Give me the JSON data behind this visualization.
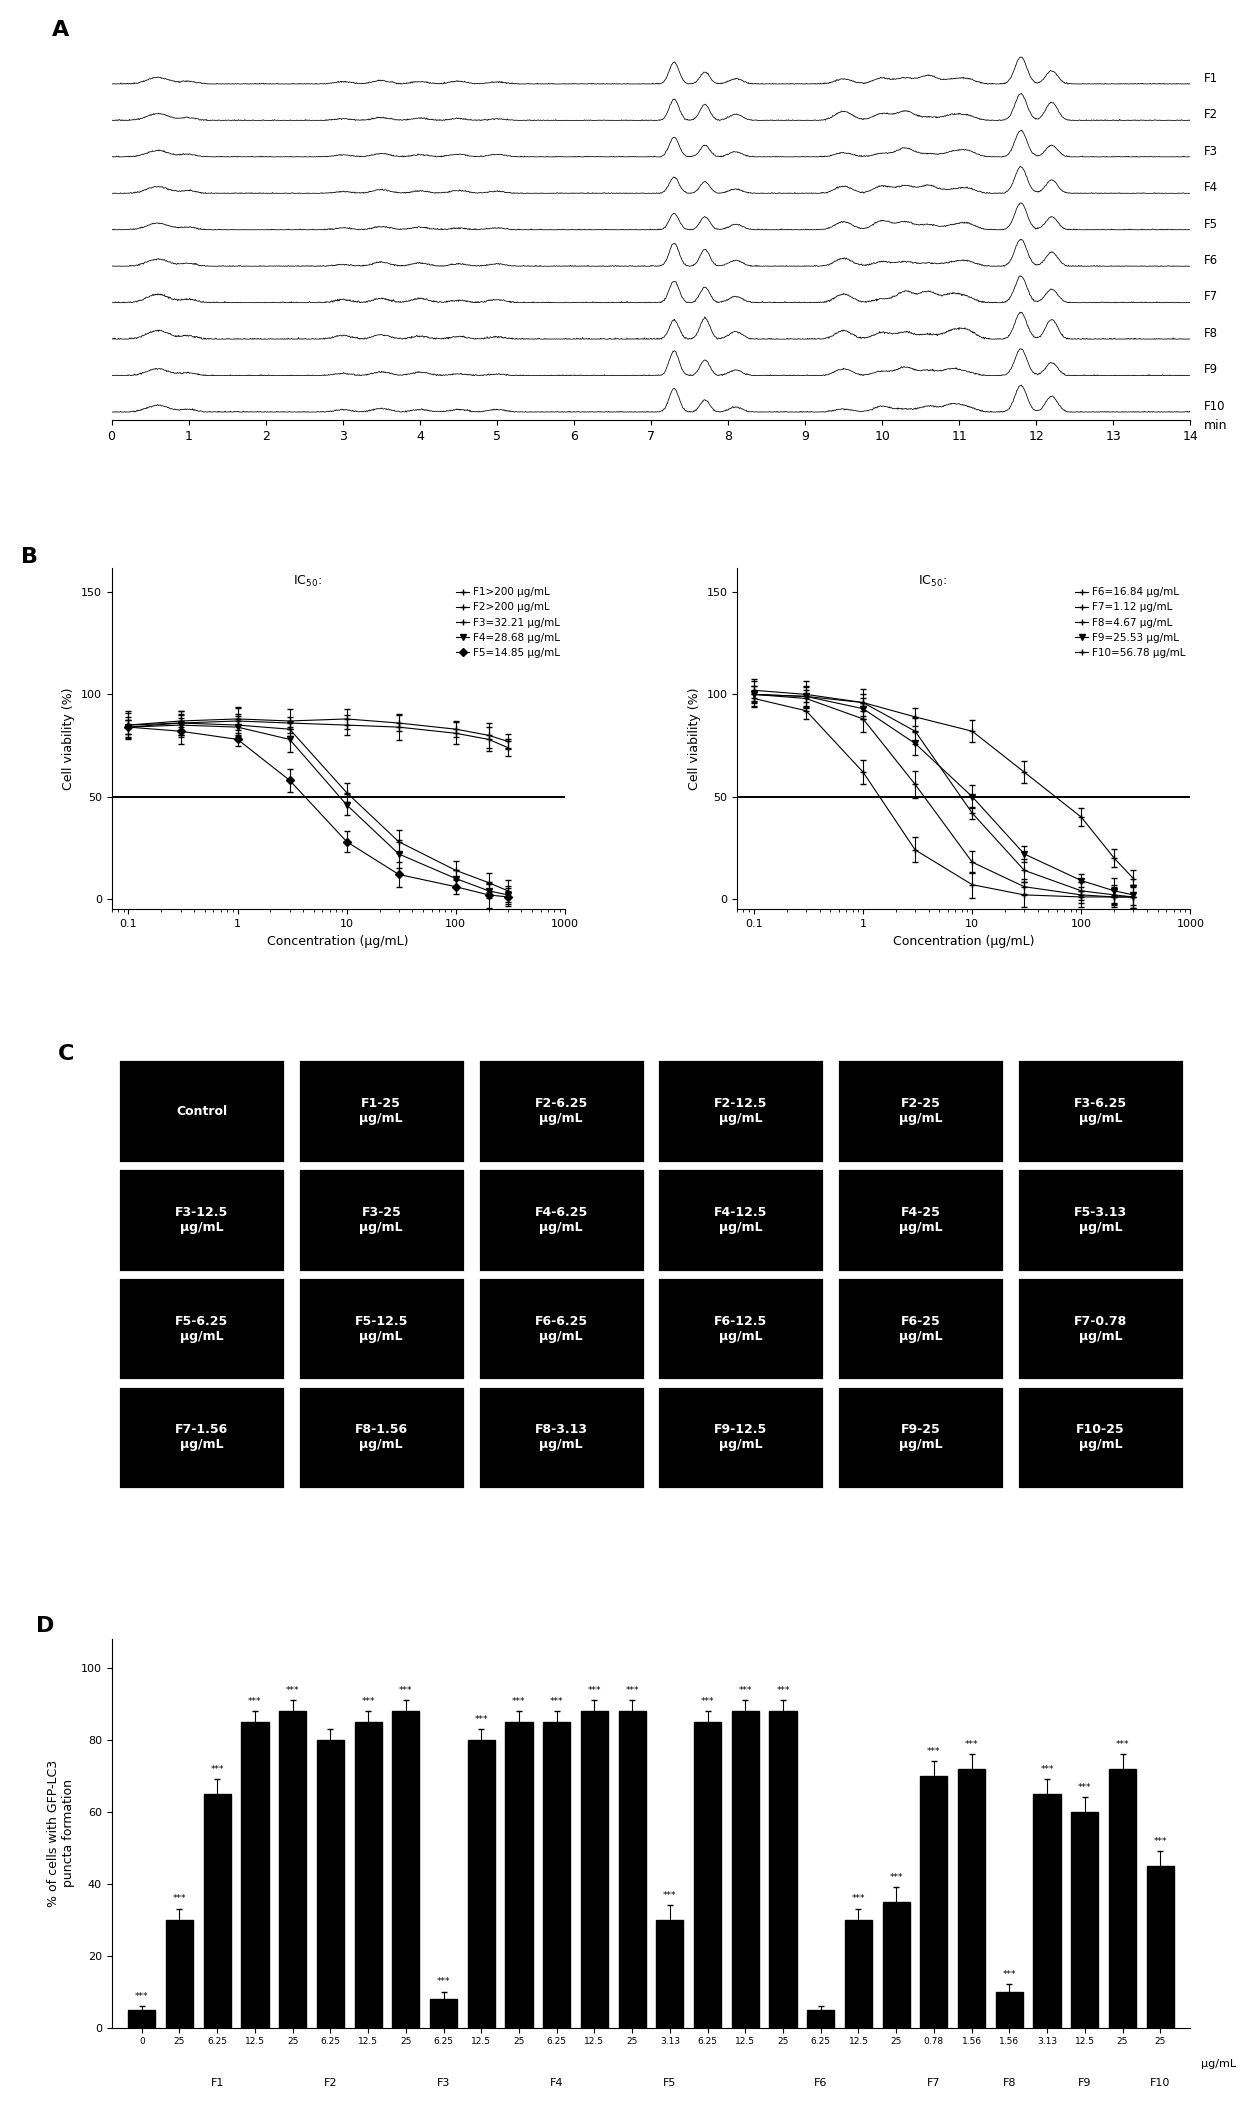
{
  "panel_labels": [
    "A",
    "B",
    "C",
    "D"
  ],
  "chromatogram": {
    "traces": [
      "F1",
      "F2",
      "F3",
      "F4",
      "F5",
      "F6",
      "F7",
      "F8",
      "F9",
      "F10"
    ],
    "x_min": 0,
    "x_max": 14,
    "x_ticks": [
      0,
      1,
      2,
      3,
      4,
      5,
      6,
      7,
      8,
      9,
      10,
      11,
      12,
      13,
      14
    ],
    "x_label": "min"
  },
  "cell_viability_left": {
    "legend": [
      "F1>200 μg/mL",
      "F2>200 μg/mL",
      "F3=32.21 μg/mL",
      "F4=28.68 μg/mL",
      "F5=14.85 μg/mL"
    ],
    "x_label": "Concentration (μg/mL)",
    "y_label": "Cell viability (%)"
  },
  "cell_viability_right": {
    "legend": [
      "F6=16.84 μg/mL",
      "F7=1.12 μg/mL",
      "F8=4.67 μg/mL",
      "F9=25.53 μg/mL",
      "F10=56.78 μg/mL"
    ],
    "x_label": "Concentration (μg/mL)",
    "y_label": "Cell viability (%)"
  },
  "grid_labels": [
    [
      "Control",
      "F1-25\nμg/mL",
      "F2-6.25\nμg/mL",
      "F2-12.5\nμg/mL",
      "F2-25\nμg/mL",
      "F3-6.25\nμg/mL"
    ],
    [
      "F3-12.5\nμg/mL",
      "F3-25\nμg/mL",
      "F4-6.25\nμg/mL",
      "F4-12.5\nμg/mL",
      "F4-25\nμg/mL",
      "F5-3.13\nμg/mL"
    ],
    [
      "F5-6.25\nμg/mL",
      "F5-12.5\nμg/mL",
      "F6-6.25\nμg/mL",
      "F6-12.5\nμg/mL",
      "F6-25\nμg/mL",
      "F7-0.78\nμg/mL"
    ],
    [
      "F7-1.56\nμg/mL",
      "F8-1.56\nμg/mL",
      "F8-3.13\nμg/mL",
      "F9-12.5\nμg/mL",
      "F9-25\nμg/mL",
      "F10-25\nμg/mL"
    ]
  ],
  "bar_groups": [
    {
      "label": "0",
      "fraction": ""
    },
    {
      "label": "25",
      "fraction": ""
    },
    {
      "label": "6.25",
      "fraction": "F1"
    },
    {
      "label": "12.5",
      "fraction": ""
    },
    {
      "label": "25",
      "fraction": ""
    },
    {
      "label": "6.25",
      "fraction": "F2"
    },
    {
      "label": "12.5",
      "fraction": ""
    },
    {
      "label": "25",
      "fraction": ""
    },
    {
      "label": "6.25",
      "fraction": "F3"
    },
    {
      "label": "12.5",
      "fraction": ""
    },
    {
      "label": "25",
      "fraction": ""
    },
    {
      "label": "6.25",
      "fraction": "F4"
    },
    {
      "label": "12.5",
      "fraction": ""
    },
    {
      "label": "25",
      "fraction": ""
    },
    {
      "label": "3.13",
      "fraction": "F5"
    },
    {
      "label": "6.25",
      "fraction": ""
    },
    {
      "label": "12.5",
      "fraction": ""
    },
    {
      "label": "25",
      "fraction": ""
    },
    {
      "label": "6.25",
      "fraction": "F6"
    },
    {
      "label": "12.5",
      "fraction": ""
    },
    {
      "label": "25",
      "fraction": ""
    },
    {
      "label": "0.78",
      "fraction": "F7"
    },
    {
      "label": "1.56",
      "fraction": ""
    },
    {
      "label": "1.56",
      "fraction": "F8"
    },
    {
      "label": "3.13",
      "fraction": ""
    },
    {
      "label": "12.5",
      "fraction": "F9"
    },
    {
      "label": "25",
      "fraction": ""
    },
    {
      "label": "25",
      "fraction": "F10"
    }
  ],
  "bar_values": [
    5,
    30,
    65,
    85,
    88,
    80,
    85,
    88,
    8,
    80,
    85,
    85,
    88,
    88,
    30,
    85,
    88,
    88,
    5,
    30,
    35,
    70,
    72,
    10,
    65,
    60,
    72,
    45
  ],
  "bar_errors": [
    1,
    3,
    4,
    3,
    3,
    3,
    3,
    3,
    2,
    3,
    3,
    3,
    3,
    3,
    4,
    3,
    3,
    3,
    1,
    3,
    4,
    4,
    4,
    2,
    4,
    4,
    4,
    4
  ],
  "bar_sig": [
    "***",
    "***",
    "***",
    "***",
    "***",
    "",
    "***",
    "***",
    "***",
    "***",
    "***",
    "***",
    "***",
    "***",
    "***",
    "***",
    "***",
    "***",
    "",
    "***",
    "***",
    "***",
    "***",
    "***",
    "***",
    "***",
    "***",
    "***"
  ],
  "bar_ylabel": "% of cells with GFP-LC3\npuncta formation",
  "bar_yticks": [
    0,
    20,
    40,
    60,
    80,
    100
  ],
  "bar_xlabel": "μg/mL"
}
